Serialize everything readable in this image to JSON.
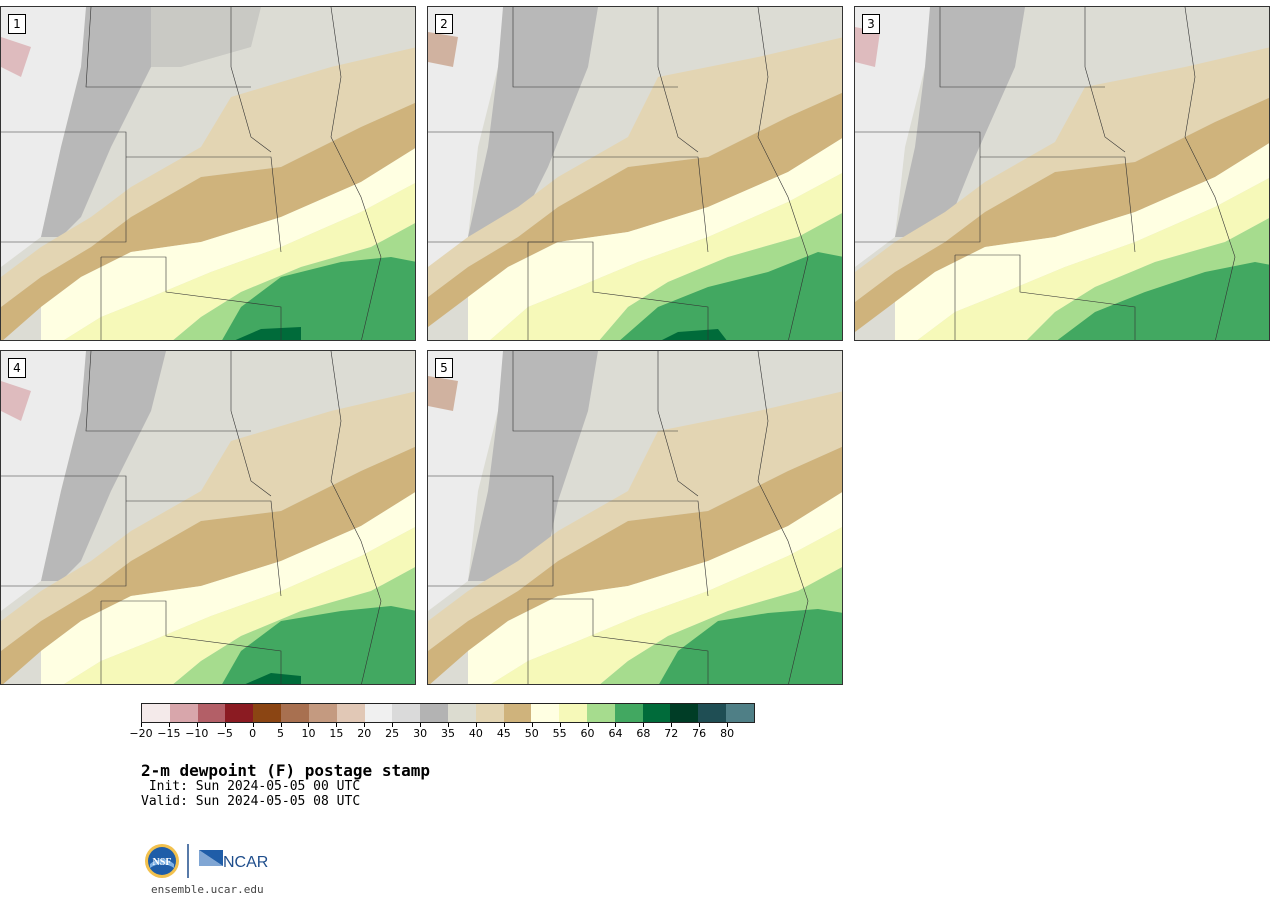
{
  "panels": [
    {
      "label": "1"
    },
    {
      "label": "2"
    },
    {
      "label": "3"
    },
    {
      "label": "4"
    },
    {
      "label": "5"
    }
  ],
  "colorbar": {
    "colors": [
      "#f4eaea",
      "#d8a6ab",
      "#b35f67",
      "#8b1b22",
      "#8b4513",
      "#a87050",
      "#c49a80",
      "#e1c8b6",
      "#f0f0f0",
      "#dadada",
      "#b3b3b3",
      "#dcdcd0",
      "#e3d5b3",
      "#cfb37c",
      "#ffffe2",
      "#f6f9b9",
      "#a6dc8e",
      "#42a861",
      "#006b3a",
      "#003d26",
      "#1f4e54",
      "#4f7f86"
    ],
    "ticks": [
      "-20",
      "-15",
      "-10",
      "-5",
      "0",
      "5",
      "10",
      "15",
      "20",
      "25",
      "30",
      "35",
      "40",
      "45",
      "50",
      "55",
      "60",
      "64",
      "68",
      "72",
      "76",
      "80"
    ]
  },
  "title": "2-m dewpoint (F) postage stamp",
  "init": " Init: Sun 2024-05-05 00 UTC",
  "valid": "Valid: Sun 2024-05-05 08 UTC",
  "logos": {
    "nsf": "NSF",
    "ncar": "NCAR"
  },
  "url": "ensemble.ucar.edu"
}
